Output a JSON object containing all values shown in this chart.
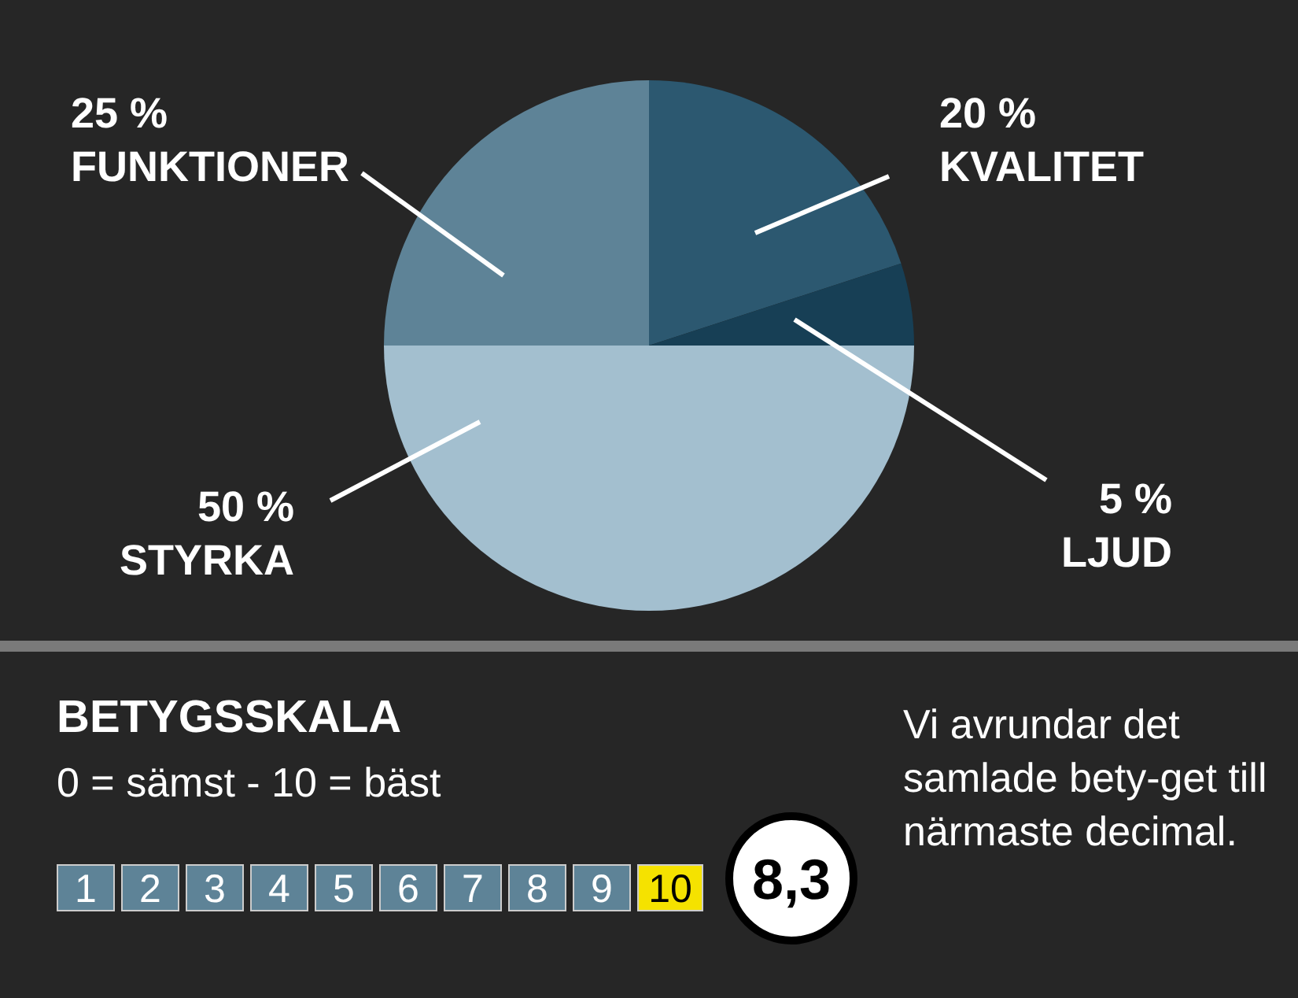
{
  "chart_data": {
    "type": "pie",
    "categories": [
      "KVALITET",
      "LJUD",
      "STYRKA",
      "FUNKTIONER"
    ],
    "values": [
      20,
      5,
      50,
      25
    ],
    "value_labels": [
      "20 %",
      "5 %",
      "50 %",
      "25 %"
    ],
    "colors": [
      "#2c5870",
      "#173f55",
      "#a3bfcf",
      "#5e8397"
    ],
    "legend": false,
    "annotations": [
      "BETYGSSKALA",
      "0 = sämst - 10 = bäst",
      "1",
      "2",
      "3",
      "4",
      "5",
      "6",
      "7",
      "8",
      "9",
      "10",
      "8,3",
      "Vi  avrundar det samlade bety-get till närmaste decimal."
    ]
  }
}
